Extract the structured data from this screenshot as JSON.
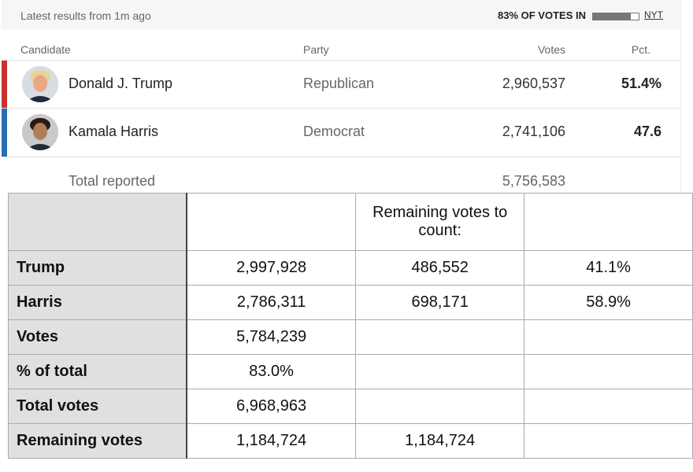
{
  "header": {
    "status": "Latest results from 1m ago",
    "votes_in": "83% OF VOTES IN",
    "votes_in_pct": 83,
    "source": "NYT"
  },
  "results": {
    "columns": [
      "Candidate",
      "Party",
      "Votes",
      "Pct."
    ],
    "rows": [
      {
        "name": "Donald J. Trump",
        "party": "Republican",
        "votes": "2,960,537",
        "pct": "51.4%",
        "color": "#c8312f"
      },
      {
        "name": "Kamala Harris",
        "party": "Democrat",
        "votes": "2,741,106",
        "pct": "47.6",
        "color": "#2a6db5"
      }
    ],
    "total": {
      "label": "Total reported",
      "votes": "5,756,583"
    }
  },
  "table": {
    "header_note": "Remaining votes to count:",
    "rows": [
      [
        "Trump",
        "2,997,928",
        "486,552",
        "41.1%"
      ],
      [
        "Harris",
        "2,786,311",
        "698,171",
        "58.9%"
      ],
      [
        "Votes",
        "5,784,239"
      ],
      [
        "% of total",
        "83.0%"
      ],
      [
        "Total votes",
        "6,968,963"
      ],
      [
        "Remaining votes",
        "1,184,724",
        "1,184,724"
      ]
    ]
  }
}
